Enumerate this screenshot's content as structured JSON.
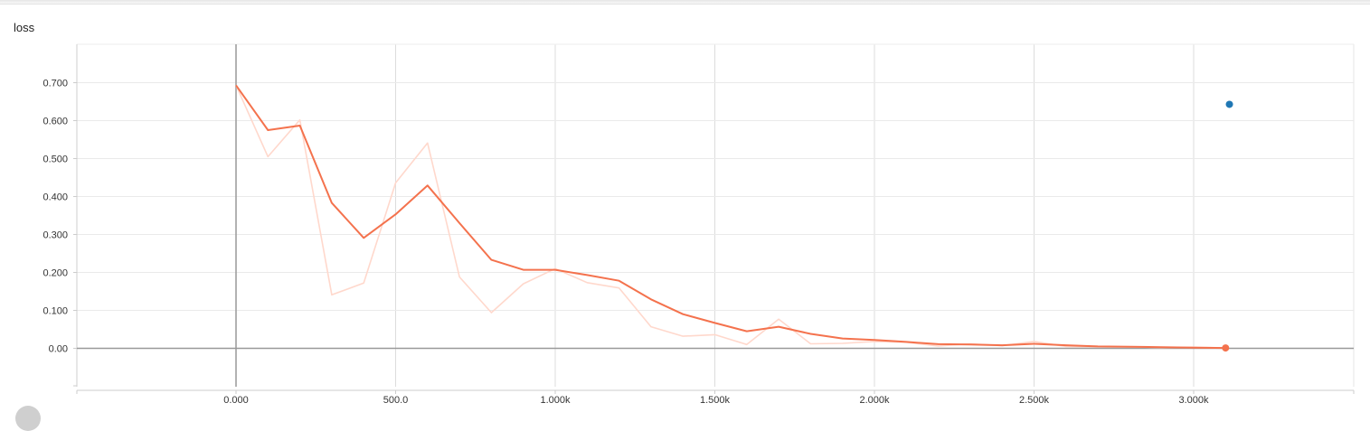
{
  "chart_data": {
    "type": "line",
    "title": "loss",
    "xlabel": "",
    "ylabel": "",
    "xlim": [
      -500,
      3500
    ],
    "ylim": [
      -0.1,
      0.8
    ],
    "grid": true,
    "x_ticks": [
      0,
      500,
      1000,
      1500,
      2000,
      2500,
      3000
    ],
    "x_tick_labels": [
      "0.000",
      "500.0",
      "1.000k",
      "1.500k",
      "2.000k",
      "2.500k",
      "3.000k"
    ],
    "y_ticks": [
      0.0,
      0.1,
      0.2,
      0.3,
      0.4,
      0.5,
      0.6,
      0.7
    ],
    "y_tick_labels": [
      "0.00",
      "0.100",
      "0.200",
      "0.300",
      "0.400",
      "0.500",
      "0.600",
      "0.700"
    ],
    "series": [
      {
        "role": "raw",
        "color": "#ffd8cc",
        "x": [
          0,
          100,
          200,
          300,
          400,
          500,
          600,
          700,
          800,
          900,
          1000,
          1100,
          1200,
          1300,
          1400,
          1500,
          1600,
          1700,
          1800,
          1900,
          2000,
          2100,
          2200,
          2300,
          2400,
          2500,
          2600,
          2700,
          2800,
          2900,
          3000,
          3100
        ],
        "y": [
          0.693,
          0.505,
          0.602,
          0.141,
          0.172,
          0.436,
          0.541,
          0.188,
          0.094,
          0.17,
          0.21,
          0.173,
          0.159,
          0.057,
          0.032,
          0.036,
          0.01,
          0.077,
          0.012,
          0.013,
          0.018,
          0.016,
          0.006,
          0.012,
          0.007,
          0.018,
          0.005,
          0.004,
          0.004,
          0.002,
          0.003,
          0.001
        ]
      },
      {
        "role": "smoothed",
        "color": "#f4724d",
        "x": [
          0,
          100,
          200,
          300,
          400,
          500,
          600,
          700,
          800,
          900,
          1000,
          1100,
          1200,
          1300,
          1400,
          1500,
          1600,
          1700,
          1800,
          1900,
          2000,
          2100,
          2200,
          2300,
          2400,
          2500,
          2600,
          2700,
          2800,
          2900,
          3000,
          3100
        ],
        "y": [
          0.693,
          0.575,
          0.587,
          0.383,
          0.291,
          0.353,
          0.429,
          0.33,
          0.233,
          0.207,
          0.207,
          0.193,
          0.178,
          0.129,
          0.09,
          0.067,
          0.045,
          0.057,
          0.038,
          0.026,
          0.022,
          0.017,
          0.011,
          0.01,
          0.008,
          0.012,
          0.008,
          0.005,
          0.004,
          0.003,
          0.002,
          0.001
        ]
      }
    ],
    "markers": [
      {
        "x": 3100,
        "y": 0.001,
        "color": "#f4724d"
      },
      {
        "x": 3112,
        "y": 0.643,
        "color": "#1f77b4"
      }
    ]
  }
}
